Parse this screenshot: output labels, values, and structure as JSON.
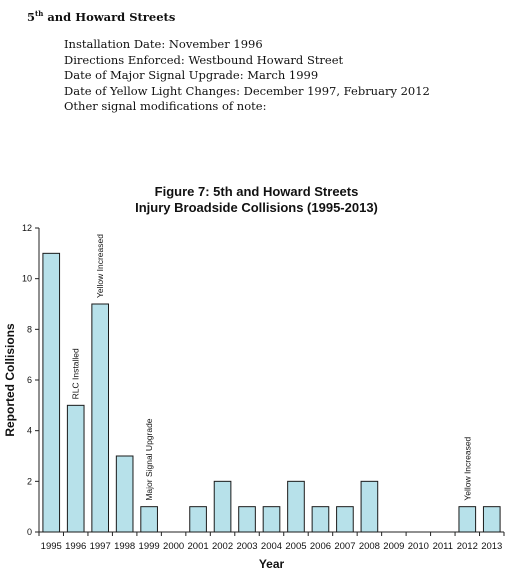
{
  "page": {
    "heading_main": "5",
    "heading_sup": "th",
    "heading_rest": " and Howard Streets",
    "info_lines": [
      "Installation Date:  November 1996",
      "Directions Enforced:  Westbound Howard Street",
      "Date of Major Signal Upgrade:  March 1999",
      "Date of Yellow Light Changes: December 1997, February 2012",
      "Other signal modifications of note:"
    ]
  },
  "chart_data": {
    "type": "bar",
    "title": "Figure 7: 5th and Howard Streets",
    "subtitle": "Injury Broadside Collisions (1995-2013)",
    "xlabel": "Year",
    "ylabel": "Reported Collisions",
    "ylim": [
      0,
      12
    ],
    "yticks": [
      0,
      2,
      4,
      6,
      8,
      10,
      12
    ],
    "grid": false,
    "categories": [
      "1995",
      "1996",
      "1997",
      "1998",
      "1999",
      "2000",
      "2001",
      "2002",
      "2003",
      "2004",
      "2005",
      "2006",
      "2007",
      "2008",
      "2009",
      "2010",
      "2011",
      "2012",
      "2013"
    ],
    "values": [
      11,
      5,
      9,
      3,
      1,
      0,
      1,
      2,
      1,
      1,
      2,
      1,
      1,
      2,
      0,
      0,
      0,
      1,
      1
    ],
    "bar_color": "#b7e1ea",
    "bar_stroke": "#1a1a1a",
    "annotations": [
      {
        "category": "1996",
        "text": "RLC Installed",
        "color": "#c0282d"
      },
      {
        "category": "1997",
        "text": "Yellow Increased",
        "color": "#555555"
      },
      {
        "category": "1999",
        "text": "Major Signal Upgrade",
        "color": "#555555"
      },
      {
        "category": "2012",
        "text": "Yellow Increased",
        "color": "#555555"
      }
    ]
  }
}
